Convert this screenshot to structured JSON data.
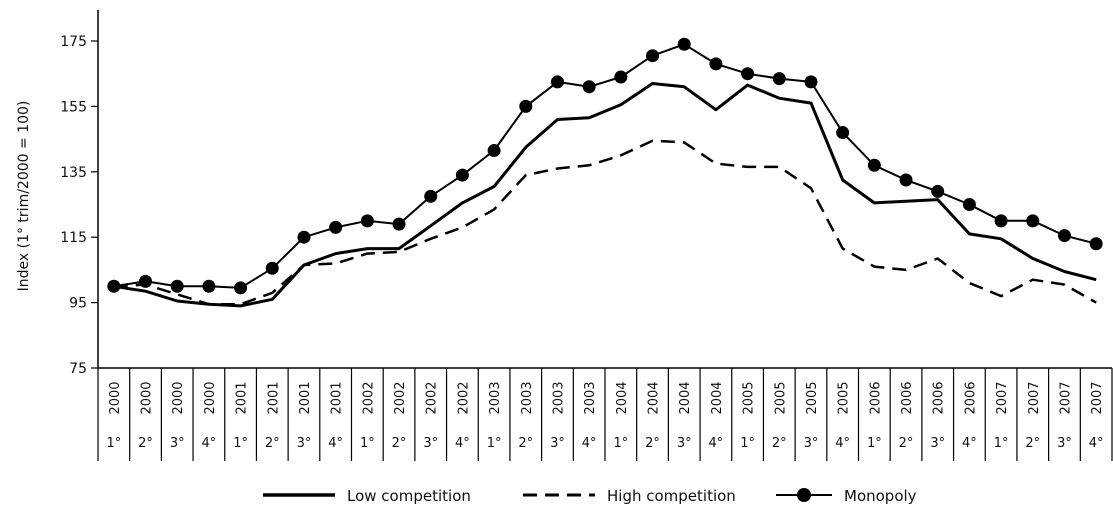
{
  "chart_data": {
    "type": "line",
    "title": "",
    "ylabel": "Index (1° trim/2000 = 100)",
    "xlabel": "",
    "ylim": [
      75,
      185
    ],
    "yticks": [
      75,
      95,
      115,
      135,
      155,
      175
    ],
    "grid": false,
    "legend_position": "bottom",
    "categories": [
      {
        "year": "2000",
        "quarter": "1°"
      },
      {
        "year": "2000",
        "quarter": "2°"
      },
      {
        "year": "2000",
        "quarter": "3°"
      },
      {
        "year": "2000",
        "quarter": "4°"
      },
      {
        "year": "2001",
        "quarter": "1°"
      },
      {
        "year": "2001",
        "quarter": "2°"
      },
      {
        "year": "2001",
        "quarter": "3°"
      },
      {
        "year": "2001",
        "quarter": "4°"
      },
      {
        "year": "2002",
        "quarter": "1°"
      },
      {
        "year": "2002",
        "quarter": "2°"
      },
      {
        "year": "2002",
        "quarter": "3°"
      },
      {
        "year": "2002",
        "quarter": "4°"
      },
      {
        "year": "2003",
        "quarter": "1°"
      },
      {
        "year": "2003",
        "quarter": "2°"
      },
      {
        "year": "2003",
        "quarter": "3°"
      },
      {
        "year": "2003",
        "quarter": "4°"
      },
      {
        "year": "2004",
        "quarter": "1°"
      },
      {
        "year": "2004",
        "quarter": "2°"
      },
      {
        "year": "2004",
        "quarter": "3°"
      },
      {
        "year": "2004",
        "quarter": "4°"
      },
      {
        "year": "2005",
        "quarter": "1°"
      },
      {
        "year": "2005",
        "quarter": "2°"
      },
      {
        "year": "2005",
        "quarter": "3°"
      },
      {
        "year": "2005",
        "quarter": "4°"
      },
      {
        "year": "2006",
        "quarter": "1°"
      },
      {
        "year": "2006",
        "quarter": "2°"
      },
      {
        "year": "2006",
        "quarter": "3°"
      },
      {
        "year": "2006",
        "quarter": "4°"
      },
      {
        "year": "2007",
        "quarter": "1°"
      },
      {
        "year": "2007",
        "quarter": "2°"
      },
      {
        "year": "2007",
        "quarter": "3°"
      },
      {
        "year": "2007",
        "quarter": "4°"
      }
    ],
    "series": [
      {
        "name": "Low competition",
        "style": "solid",
        "values": [
          100,
          98.5,
          95.5,
          94.5,
          94,
          96,
          106.5,
          110,
          111.5,
          111.5,
          118.5,
          125.5,
          130.5,
          142.5,
          151,
          151.5,
          155.5,
          162,
          161,
          154,
          161.5,
          157.5,
          156,
          132.5,
          125.5,
          126,
          126.5,
          116,
          114.5,
          108.5,
          104.5,
          102
        ]
      },
      {
        "name": "High competition",
        "style": "dashed",
        "values": [
          100,
          100.5,
          97.5,
          94.5,
          94.5,
          98,
          106.5,
          107,
          110,
          110.5,
          114.5,
          118,
          123.5,
          134,
          136,
          137,
          140,
          144.5,
          144,
          137.5,
          136.5,
          136.5,
          130,
          111.5,
          106,
          105,
          108.5,
          101,
          97,
          102,
          100.5,
          95
        ]
      },
      {
        "name": "Monopoly",
        "style": "solid-marker",
        "values": [
          100,
          101.5,
          100,
          100,
          99.5,
          105.5,
          115,
          118,
          120,
          119,
          127.5,
          134,
          141.5,
          155,
          162.5,
          161,
          164,
          170.5,
          174,
          168,
          165,
          163.5,
          162.5,
          147,
          137,
          132.5,
          129,
          125,
          120,
          120,
          115.5,
          113
        ]
      }
    ]
  }
}
